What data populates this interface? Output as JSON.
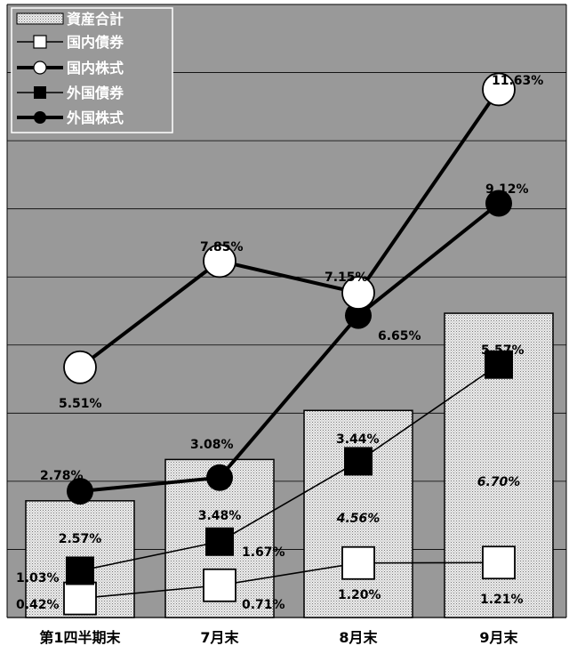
{
  "chart_data": {
    "type": "bar",
    "categories": [
      "第1四半期末",
      "7月末",
      "8月末",
      "9月末"
    ],
    "ylim": [
      0,
      13.5
    ],
    "grid": true,
    "legend_position": "top-left",
    "colors": {
      "plot_background": "#999999",
      "bar_fill": "#e8e8e8",
      "bar_dot": "#8a8a8a",
      "line_dark": "#000000",
      "marker_light": "#ffffff"
    },
    "series": [
      {
        "name": "資産合計",
        "kind": "bar",
        "values": [
          2.57,
          3.48,
          4.56,
          6.7
        ],
        "labels": [
          "2.57%",
          "3.48%",
          "4.56%",
          "6.70%"
        ]
      },
      {
        "name": "国内債券",
        "kind": "line-thin",
        "marker": "square-white",
        "values": [
          0.42,
          0.71,
          1.2,
          1.21
        ],
        "labels": [
          "0.42%",
          "0.71%",
          "1.20%",
          "1.21%"
        ]
      },
      {
        "name": "国内株式",
        "kind": "line-thick",
        "marker": "circle-white",
        "values": [
          5.51,
          7.85,
          7.15,
          11.63
        ],
        "labels": [
          "5.51%",
          "7.85%",
          "7.15%",
          "11.63%"
        ]
      },
      {
        "name": "外国債券",
        "kind": "line-thin",
        "marker": "square-black",
        "values": [
          1.03,
          1.67,
          3.44,
          5.57
        ],
        "labels": [
          "1.03%",
          "1.67%",
          "3.44%",
          "5.57%"
        ]
      },
      {
        "name": "外国株式",
        "kind": "line-thick",
        "marker": "circle-black",
        "values": [
          2.78,
          3.08,
          6.65,
          9.12
        ],
        "labels": [
          "2.78%",
          "3.08%",
          "6.65%",
          "9.12%"
        ]
      }
    ]
  }
}
